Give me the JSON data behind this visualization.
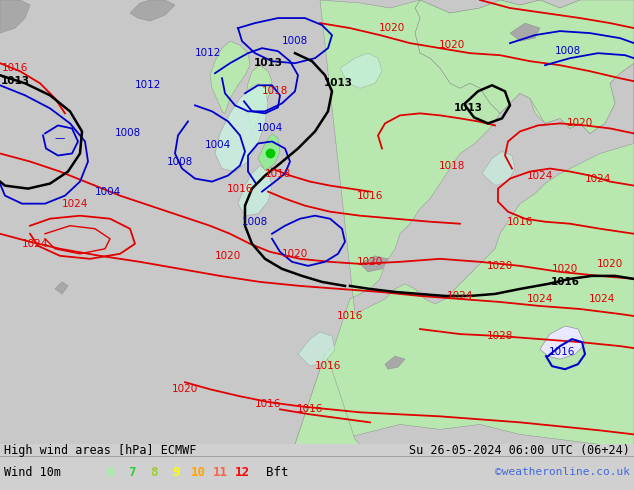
{
  "title_left": "High wind areas [hPa] ECMWF",
  "title_right": "Su 26-05-2024 06:00 UTC (06+24)",
  "legend_label": "Wind 10m",
  "legend_values": [
    "6",
    "7",
    "8",
    "9",
    "10",
    "11",
    "12"
  ],
  "legend_colors": [
    "#98fb98",
    "#32cd32",
    "#9acd32",
    "#ffff00",
    "#ffa500",
    "#ff6347",
    "#ff0000"
  ],
  "legend_unit": "Bft",
  "credit": "©weatheronline.co.uk",
  "credit_color": "#4169e1",
  "bottom_bg": "#c8c8c8",
  "separator_color": "#999999",
  "map_ocean_color": "#f0f0f0",
  "map_land_color": "#b8e8b0",
  "map_mountain_color": "#a8a8a8",
  "map_wind_cyan": "#c8f0e0",
  "map_wind_green": "#90ee90",
  "isobar_red": "#e00000",
  "isobar_blue": "#0000cc",
  "isobar_black": "#000000"
}
